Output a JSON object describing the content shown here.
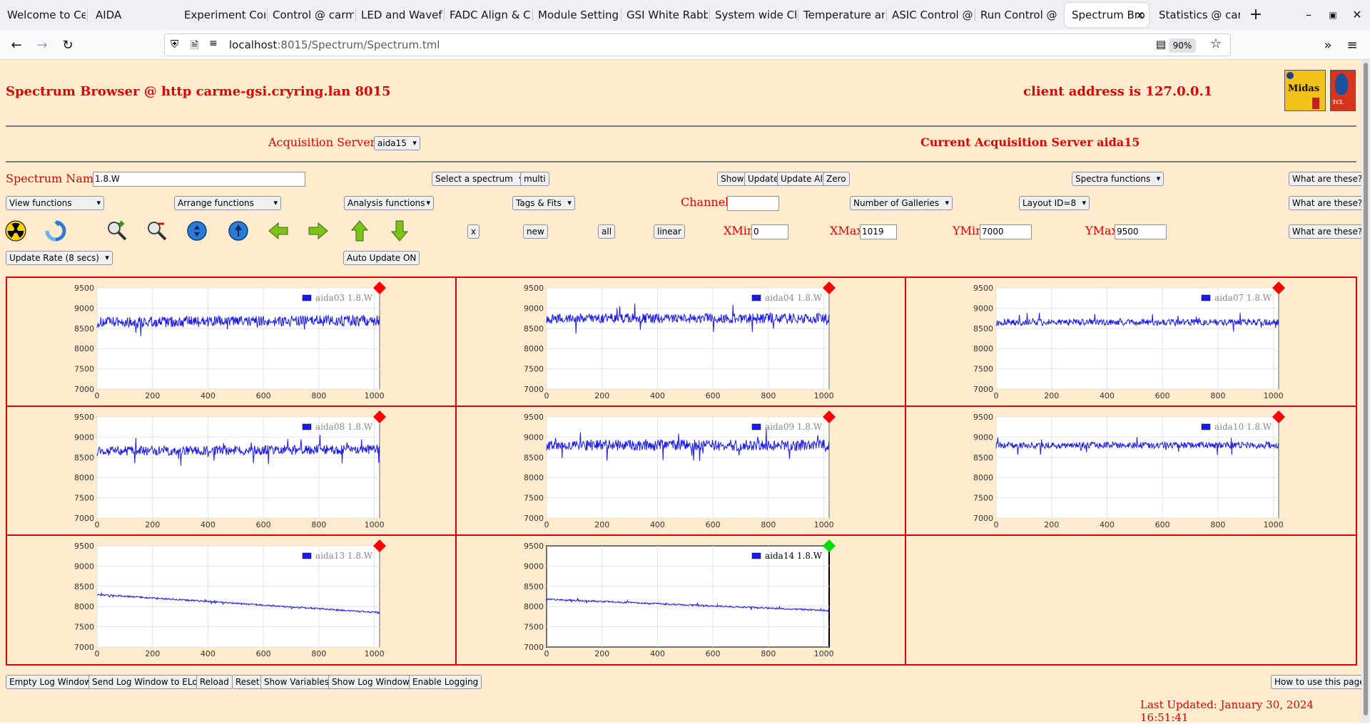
{
  "browser": {
    "tabs": [
      {
        "label": "Welcome to Ce"
      },
      {
        "label": "AIDA"
      },
      {
        "label": "Experiment Con"
      },
      {
        "label": "Control @ carm"
      },
      {
        "label": "LED and Wavef"
      },
      {
        "label": "FADC Align & C"
      },
      {
        "label": "Module Settings"
      },
      {
        "label": "GSI White Rabb"
      },
      {
        "label": "System wide Ch"
      },
      {
        "label": "Temperature an"
      },
      {
        "label": "ASIC Control @"
      },
      {
        "label": "Run Control @"
      },
      {
        "label": "Spectrum Bro"
      },
      {
        "label": "Statistics @ car"
      }
    ],
    "active_tab_close": "×",
    "new_tab": "+",
    "url_host": "localhost",
    "url_path": ":8015/Spectrum/Spectrum.tml",
    "zoom": "90%"
  },
  "header": {
    "title": "Spectrum Browser @ http carme-gsi.cryring.lan 8015",
    "client": "client address is 127.0.0.1",
    "logo_midas": "Midas",
    "logo_tcl": "TCL"
  },
  "servers": {
    "label": "Acquisition Servers",
    "selected": "aida15",
    "current": "Current Acquisition Server aida15"
  },
  "row1": {
    "spectrum_name_label": "Spectrum Name:",
    "spectrum_name_value": "1.8.W",
    "select_spectrum": "Select a spectrum",
    "multi": "multi",
    "show": "Show",
    "update": "Update",
    "update_all": "Update All",
    "zero": "Zero",
    "spectra_functions": "Spectra functions",
    "what": "What are these?"
  },
  "row2": {
    "view_functions": "View functions",
    "arrange_functions": "Arrange functions",
    "analysis_functions": "Analysis functions",
    "tags_fits": "Tags & Fits",
    "channel_label": "Channel:",
    "channel_value": "",
    "galleries": "Number of Galleries",
    "layout": "Layout ID=8",
    "what": "What are these?"
  },
  "row3": {
    "x": "x",
    "new": "new",
    "all": "all",
    "linear": "linear",
    "xmin_label": "XMin",
    "xmin_value": "0",
    "xmax_label": "XMax",
    "xmax_value": "1019",
    "ymin_label": "YMin",
    "ymin_value": "7000",
    "ymax_label": "YMax",
    "ymax_value": "9500",
    "what": "What are these?",
    "icons": [
      "radiation-icon",
      "refresh-icon",
      "zoom-in-icon",
      "zoom-out-icon",
      "expand-y-icon",
      "expand-y-alt-icon",
      "arrow-left-icon",
      "arrow-right-icon",
      "arrow-up-icon",
      "arrow-down-icon"
    ]
  },
  "row4": {
    "update_rate": "Update Rate (8 secs)",
    "auto_update": "Auto Update ON"
  },
  "colors": {
    "accent": "#e00000",
    "page_bg": "#ffebcd",
    "trace": "#1a1aee",
    "marker_red": "#ff0000",
    "marker_green": "#00dd00"
  },
  "chart_data": [
    {
      "type": "line",
      "legend": "aida03 1.8.W",
      "xlim": [
        0,
        1019
      ],
      "ylim": [
        7000,
        9500
      ],
      "x_ticks": [
        "0",
        "200",
        "400",
        "600",
        "800",
        "1000"
      ],
      "y_ticks": [
        "9500",
        "9000",
        "8500",
        "8000",
        "7500",
        "7000"
      ],
      "baseline": 8650,
      "end": 8700,
      "noise": 170,
      "marker": "red",
      "selected": false
    },
    {
      "type": "line",
      "legend": "aida04 1.8.W",
      "xlim": [
        0,
        1019
      ],
      "ylim": [
        7000,
        9500
      ],
      "x_ticks": [
        "0",
        "200",
        "400",
        "600",
        "800",
        "1000"
      ],
      "y_ticks": [
        "9500",
        "9000",
        "8500",
        "8000",
        "7500",
        "7000"
      ],
      "baseline": 8750,
      "end": 8750,
      "noise": 150,
      "marker": "red",
      "selected": false
    },
    {
      "type": "line",
      "legend": "aida07 1.8.W",
      "xlim": [
        0,
        1019
      ],
      "ylim": [
        7000,
        9500
      ],
      "x_ticks": [
        "0",
        "200",
        "400",
        "600",
        "800",
        "1000"
      ],
      "y_ticks": [
        "9500",
        "9000",
        "8500",
        "8000",
        "7500",
        "7000"
      ],
      "baseline": 8650,
      "end": 8650,
      "noise": 100,
      "marker": "red",
      "selected": false
    },
    {
      "type": "line",
      "legend": "aida08 1.8.W",
      "xlim": [
        0,
        1019
      ],
      "ylim": [
        7000,
        9500
      ],
      "x_ticks": [
        "0",
        "200",
        "400",
        "600",
        "800",
        "1000"
      ],
      "y_ticks": [
        "9500",
        "9000",
        "8500",
        "8000",
        "7500",
        "7000"
      ],
      "baseline": 8650,
      "end": 8700,
      "noise": 150,
      "marker": "red",
      "selected": false
    },
    {
      "type": "line",
      "legend": "aida09 1.8.W",
      "xlim": [
        0,
        1019
      ],
      "ylim": [
        7000,
        9500
      ],
      "x_ticks": [
        "0",
        "200",
        "400",
        "600",
        "800",
        "1000"
      ],
      "y_ticks": [
        "9500",
        "9000",
        "8500",
        "8000",
        "7500",
        "7000"
      ],
      "baseline": 8800,
      "end": 8800,
      "noise": 170,
      "marker": "red",
      "selected": false
    },
    {
      "type": "line",
      "legend": "aida10 1.8.W",
      "xlim": [
        0,
        1019
      ],
      "ylim": [
        7000,
        9500
      ],
      "x_ticks": [
        "0",
        "200",
        "400",
        "600",
        "800",
        "1000"
      ],
      "y_ticks": [
        "9500",
        "9000",
        "8500",
        "8000",
        "7500",
        "7000"
      ],
      "baseline": 8800,
      "end": 8800,
      "noise": 100,
      "marker": "red",
      "selected": false
    },
    {
      "type": "line",
      "legend": "aida13 1.8.W",
      "xlim": [
        0,
        1019
      ],
      "ylim": [
        7000,
        9500
      ],
      "x_ticks": [
        "0",
        "200",
        "400",
        "600",
        "800",
        "1000"
      ],
      "y_ticks": [
        "9500",
        "9000",
        "8500",
        "8000",
        "7500",
        "7000"
      ],
      "baseline": 8300,
      "end": 7850,
      "noise": 25,
      "marker": "red",
      "selected": false
    },
    {
      "type": "line",
      "legend": "aida14 1.8.W",
      "xlim": [
        0,
        1019
      ],
      "ylim": [
        7000,
        9500
      ],
      "x_ticks": [
        "0",
        "200",
        "400",
        "600",
        "800",
        "1000"
      ],
      "y_ticks": [
        "9500",
        "9000",
        "8500",
        "8000",
        "7500",
        "7000"
      ],
      "baseline": 8180,
      "end": 7900,
      "noise": 25,
      "marker": "green",
      "selected": true
    }
  ],
  "footer": {
    "empty_log": "Empty Log Window",
    "send_log": "Send Log Window to ELog",
    "reload": "Reload",
    "reset": "Reset",
    "show_variables": "Show Variables",
    "show_log": "Show Log Window",
    "enable_logging": "Enable Logging",
    "how_to": "How to use this page",
    "last_updated": "Last Updated: January 30, 2024 16:51:41"
  }
}
